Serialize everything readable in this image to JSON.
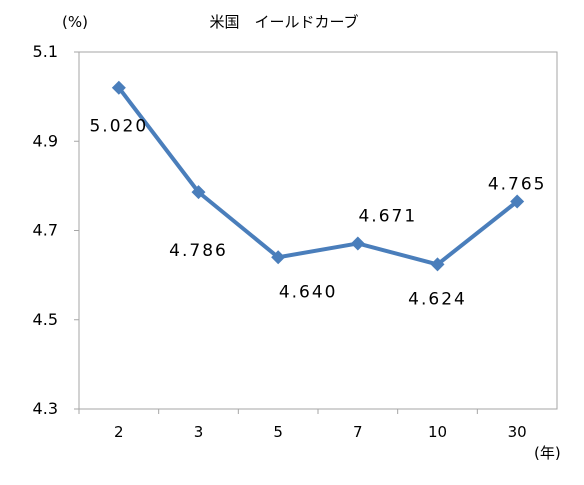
{
  "chart_data": {
    "type": "line",
    "title": "米国　イールドカーブ",
    "y_unit_label": "(%)",
    "x_unit_label": "(年)",
    "categories": [
      "2",
      "3",
      "5",
      "7",
      "10",
      "30"
    ],
    "series": [
      {
        "values": [
          5.02,
          4.786,
          4.64,
          4.671,
          4.624,
          4.765
        ],
        "data_labels": [
          "5.020",
          "4.786",
          "4.640",
          "4.671",
          "4.624",
          "4.765"
        ],
        "color": "#4a7ebb"
      }
    ],
    "y_ticks": [
      "5.1",
      "4.9",
      "4.7",
      "4.5",
      "4.3"
    ],
    "ylim": [
      4.3,
      5.1
    ],
    "grid": false,
    "legend": "none",
    "plot_border_color": "#a6a6a6"
  }
}
